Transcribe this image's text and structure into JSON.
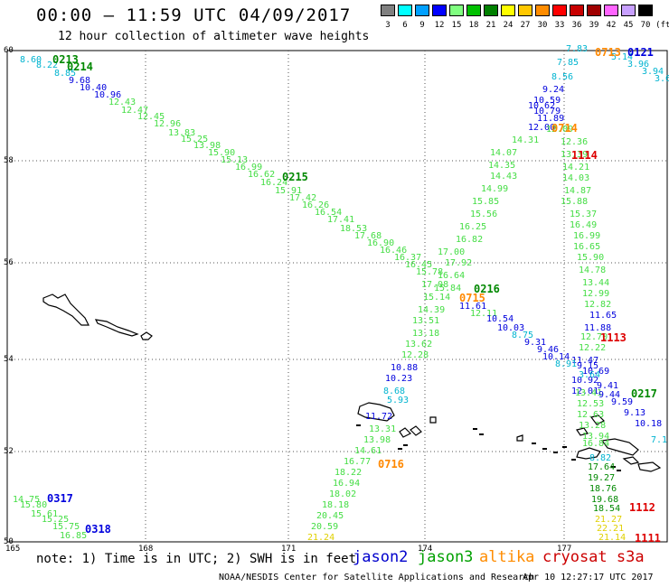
{
  "title": "00:00 – 11:59 UTC 04/09/2017",
  "subtitle": "12 hour collection of altimeter wave heights",
  "color_scale": {
    "unit": "(ft)",
    "steps": [
      {
        "label": "3",
        "color": "#808080"
      },
      {
        "label": "6",
        "color": "#00ffff"
      },
      {
        "label": "9",
        "color": "#00a0ff"
      },
      {
        "label": "12",
        "color": "#0000ff"
      },
      {
        "label": "15",
        "color": "#80ff80"
      },
      {
        "label": "18",
        "color": "#00c000"
      },
      {
        "label": "21",
        "color": "#008000"
      },
      {
        "label": "24",
        "color": "#ffff00"
      },
      {
        "label": "27",
        "color": "#ffc800"
      },
      {
        "label": "30",
        "color": "#ff8c00"
      },
      {
        "label": "33",
        "color": "#ff0000"
      },
      {
        "label": "36",
        "color": "#c80000"
      },
      {
        "label": "39",
        "color": "#a00000"
      },
      {
        "label": "42",
        "color": "#ff64ff"
      },
      {
        "label": "45",
        "color": "#c8a0ff"
      },
      {
        "label": "70",
        "color": "#000000"
      }
    ]
  },
  "axes": {
    "lat_labels": [
      "60",
      "58",
      "56",
      "54",
      "52",
      "50"
    ],
    "lon_labels": [
      "165",
      "168",
      "171",
      "174",
      "177"
    ]
  },
  "track_colors": {
    "cyan": "#00b4d0",
    "blue": "#0000dd",
    "lgreen": "#44dd44",
    "green": "#008800",
    "yellow": "#e0d000",
    "orange": "#ff8800",
    "red": "#dd0000"
  },
  "wave_labels": [
    [
      "8.60",
      "cyan"
    ],
    [
      "8.22",
      "cyan"
    ],
    [
      "8.85",
      "cyan"
    ],
    [
      "9.68",
      "blue"
    ],
    [
      "10.40",
      "blue"
    ],
    [
      "10.96",
      "blue"
    ],
    [
      "12.43",
      "lgreen"
    ],
    [
      "12.47",
      "lgreen"
    ],
    [
      "12.45",
      "lgreen"
    ],
    [
      "12.96",
      "lgreen"
    ],
    [
      "13.83",
      "lgreen"
    ],
    [
      "15.25",
      "lgreen"
    ],
    [
      "13.98",
      "lgreen"
    ],
    [
      "15.90",
      "lgreen"
    ],
    [
      "15.13",
      "lgreen"
    ],
    [
      "16.99",
      "lgreen"
    ],
    [
      "16.62",
      "lgreen"
    ],
    [
      "16.24",
      "lgreen"
    ],
    [
      "15.91",
      "lgreen"
    ],
    [
      "17.42",
      "lgreen"
    ],
    [
      "16.26",
      "lgreen"
    ],
    [
      "16.54",
      "lgreen"
    ],
    [
      "17.41",
      "lgreen"
    ],
    [
      "18.53",
      "lgreen"
    ],
    [
      "17.68",
      "lgreen"
    ],
    [
      "16.90",
      "lgreen"
    ],
    [
      "16.46",
      "lgreen"
    ],
    [
      "16.37",
      "lgreen"
    ],
    [
      "16.45",
      "lgreen"
    ],
    [
      "15.78",
      "lgreen"
    ],
    [
      "16.64",
      "lgreen"
    ],
    [
      "17.08",
      "lgreen"
    ],
    [
      "15.84",
      "lgreen"
    ],
    [
      "15.14",
      "lgreen"
    ],
    [
      "14.39",
      "lgreen"
    ],
    [
      "13.51",
      "lgreen"
    ],
    [
      "13.18",
      "lgreen"
    ],
    [
      "13.62",
      "lgreen"
    ],
    [
      "12.28",
      "lgreen"
    ],
    [
      "10.88",
      "blue"
    ],
    [
      "10.23",
      "blue"
    ],
    [
      "8.68",
      "cyan"
    ],
    [
      "5.93",
      "cyan"
    ],
    [
      "11.72",
      "blue"
    ],
    [
      "13.31",
      "lgreen"
    ],
    [
      "13.98",
      "lgreen"
    ],
    [
      "14.61",
      "lgreen"
    ],
    [
      "16.77",
      "lgreen"
    ],
    [
      "18.22",
      "lgreen"
    ],
    [
      "16.94",
      "lgreen"
    ],
    [
      "18.02",
      "lgreen"
    ],
    [
      "18.18",
      "lgreen"
    ],
    [
      "20.45",
      "lgreen"
    ],
    [
      "20.59",
      "lgreen"
    ],
    [
      "21.24",
      "yellow"
    ],
    [
      "14.75",
      "lgreen"
    ],
    [
      "15.80",
      "lgreen"
    ],
    [
      "15.61",
      "lgreen"
    ],
    [
      "15.25",
      "lgreen"
    ],
    [
      "15.75",
      "lgreen"
    ],
    [
      "16.85",
      "lgreen"
    ],
    [
      "17.92",
      "lgreen"
    ],
    [
      "17.00",
      "lgreen"
    ],
    [
      "16.82",
      "lgreen"
    ],
    [
      "16.25",
      "lgreen"
    ],
    [
      "15.56",
      "lgreen"
    ],
    [
      "15.85",
      "lgreen"
    ],
    [
      "14.99",
      "lgreen"
    ],
    [
      "14.43",
      "lgreen"
    ],
    [
      "14.35",
      "lgreen"
    ],
    [
      "14.07",
      "lgreen"
    ],
    [
      "14.31",
      "lgreen"
    ],
    [
      "12.00",
      "blue"
    ],
    [
      "11.89",
      "blue"
    ],
    [
      "10.79",
      "blue"
    ],
    [
      "10.62",
      "blue"
    ],
    [
      "10.59",
      "blue"
    ],
    [
      "9.24",
      "blue"
    ],
    [
      "8.56",
      "cyan"
    ],
    [
      "7.85",
      "cyan"
    ],
    [
      "7.83",
      "cyan"
    ],
    [
      "5.14",
      "cyan"
    ],
    [
      "3.96",
      "cyan"
    ],
    [
      "3.94",
      "cyan"
    ],
    [
      "3.6",
      "cyan"
    ],
    [
      "12.09",
      "lgreen"
    ],
    [
      "12.36",
      "lgreen"
    ],
    [
      "13.39",
      "lgreen"
    ],
    [
      "14.21",
      "lgreen"
    ],
    [
      "14.03",
      "lgreen"
    ],
    [
      "14.87",
      "lgreen"
    ],
    [
      "15.88",
      "lgreen"
    ],
    [
      "15.37",
      "lgreen"
    ],
    [
      "16.49",
      "lgreen"
    ],
    [
      "16.99",
      "lgreen"
    ],
    [
      "16.65",
      "lgreen"
    ],
    [
      "15.90",
      "lgreen"
    ],
    [
      "14.78",
      "lgreen"
    ],
    [
      "13.44",
      "lgreen"
    ],
    [
      "12.99",
      "lgreen"
    ],
    [
      "12.82",
      "lgreen"
    ],
    [
      "11.65",
      "blue"
    ],
    [
      "11.88",
      "blue"
    ],
    [
      "12.70",
      "lgreen"
    ],
    [
      "12.22",
      "lgreen"
    ],
    [
      "11.47",
      "blue"
    ],
    [
      "10.69",
      "blue"
    ],
    [
      "10.92",
      "blue"
    ],
    [
      "12.01",
      "blue"
    ],
    [
      "13.41",
      "lgreen"
    ],
    [
      "12.53",
      "lgreen"
    ],
    [
      "12.63",
      "lgreen"
    ],
    [
      "13.28",
      "lgreen"
    ],
    [
      "13.94",
      "lgreen"
    ],
    [
      "16.84",
      "lgreen"
    ],
    [
      "17.64",
      "green"
    ],
    [
      "19.27",
      "green"
    ],
    [
      "18.76",
      "green"
    ],
    [
      "19.68",
      "green"
    ],
    [
      "18.54",
      "green"
    ],
    [
      "21.27",
      "yellow"
    ],
    [
      "22.21",
      "yellow"
    ],
    [
      "21.14",
      "yellow"
    ],
    [
      "12.11",
      "lgreen"
    ],
    [
      "11.61",
      "blue"
    ],
    [
      "10.54",
      "blue"
    ],
    [
      "10.03",
      "blue"
    ],
    [
      "8.75",
      "cyan"
    ],
    [
      "9.31",
      "blue"
    ],
    [
      "9.46",
      "blue"
    ],
    [
      "10.14",
      "blue"
    ],
    [
      "8.91",
      "cyan"
    ],
    [
      "9.15",
      "blue"
    ],
    [
      "3.64",
      "cyan"
    ],
    [
      "9.41",
      "blue"
    ],
    [
      "9.44",
      "blue"
    ],
    [
      "9.59",
      "blue"
    ],
    [
      "9.13",
      "blue"
    ],
    [
      "10.18",
      "blue"
    ],
    [
      "7.1",
      "cyan"
    ],
    [
      "8.82",
      "cyan"
    ]
  ],
  "time_labels": [
    [
      "0213",
      "green"
    ],
    [
      "0214",
      "green"
    ],
    [
      "0215",
      "green"
    ],
    [
      "0216",
      "green"
    ],
    [
      "0217",
      "green"
    ],
    [
      "0121",
      "blue"
    ],
    [
      "0317",
      "blue"
    ],
    [
      "0318",
      "blue"
    ],
    [
      "0713",
      "orange"
    ],
    [
      "0714",
      "orange"
    ],
    [
      "0715",
      "orange"
    ],
    [
      "0716",
      "orange"
    ],
    [
      "1111",
      "red"
    ],
    [
      "1112",
      "red"
    ],
    [
      "1113",
      "red"
    ],
    [
      "1114",
      "red"
    ]
  ],
  "footer": {
    "note": "note: 1) Time is in UTC; 2) SWH is in feet",
    "satellites": [
      {
        "name": "jason2",
        "color": "#0000cc"
      },
      {
        "name": "jason3",
        "color": "#00a000"
      },
      {
        "name": "altika",
        "color": "#ff8c00"
      },
      {
        "name": "cryosat s3a",
        "color": "#cc0000"
      }
    ],
    "credit": "NOAA/NESDIS Center for Satellite Applications and Research",
    "timestamp": "Apr 10 12:27:17 UTC 2017"
  }
}
